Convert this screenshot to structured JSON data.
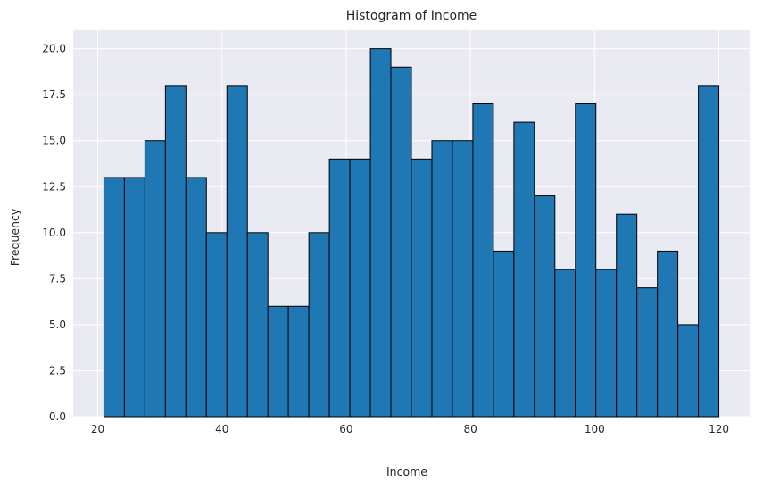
{
  "chart_data": {
    "type": "bar",
    "title": "Histogram of Income",
    "xlabel": "Income",
    "ylabel": "Frequency",
    "bins": {
      "start": 21,
      "end": 120,
      "count": 30
    },
    "values": [
      13,
      13,
      15,
      18,
      13,
      10,
      18,
      10,
      6,
      6,
      10,
      14,
      14,
      20,
      19,
      14,
      15,
      15,
      17,
      9,
      16,
      12,
      8,
      17,
      8,
      11,
      7,
      9,
      5,
      18
    ],
    "xlim": [
      16.05,
      124.95
    ],
    "ylim": [
      0,
      21
    ],
    "xticks": [
      20,
      40,
      60,
      80,
      100,
      120
    ],
    "yticks": [
      0,
      2.5,
      5,
      7.5,
      10,
      12.5,
      15,
      17.5,
      20
    ],
    "xtick_labels": [
      "20",
      "40",
      "60",
      "80",
      "100",
      "120"
    ],
    "ytick_labels": [
      "0.0",
      "2.5",
      "5.0",
      "7.5",
      "10.0",
      "12.5",
      "15.0",
      "17.5",
      "20.0"
    ],
    "grid": true,
    "colors": {
      "bar_fill": "#1f77b4",
      "bar_edge": "#000000",
      "plot_background": "#eaeaf2",
      "grid": "#ffffff"
    }
  }
}
